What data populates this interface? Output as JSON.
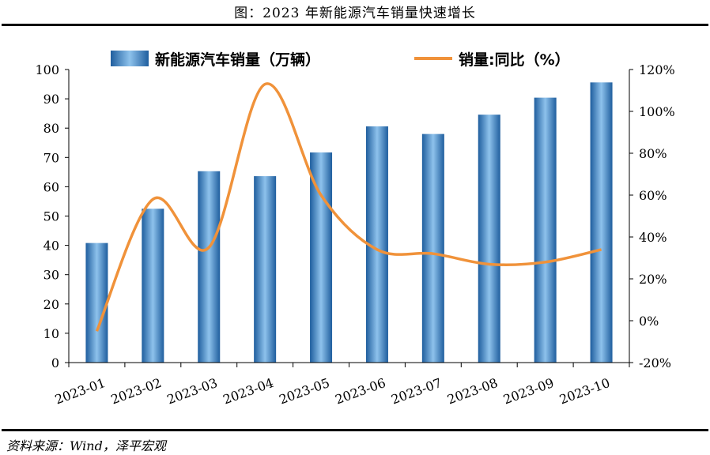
{
  "figure_title": "图：2023 年新能源汽车销量快速增长",
  "source": "资料来源：Wind，泽平宏观",
  "colors": {
    "bar_dark": "#1f5e9e",
    "bar_light": "#8ec2ec",
    "line": "#f0923a"
  },
  "chart_data": {
    "type": "bar",
    "title": "",
    "categories": [
      "2023-01",
      "2023-02",
      "2023-03",
      "2023-04",
      "2023-05",
      "2023-06",
      "2023-07",
      "2023-08",
      "2023-09",
      "2023-10"
    ],
    "series": [
      {
        "name": "新能源汽车销量（万辆）",
        "type": "bar",
        "axis": "left",
        "values": [
          40.8,
          52.5,
          65.3,
          63.6,
          71.7,
          80.6,
          78.0,
          84.6,
          90.4,
          95.6
        ]
      },
      {
        "name": "销量:同比（%）",
        "type": "line",
        "axis": "right",
        "values": [
          -5,
          58,
          35,
          113,
          60,
          34,
          32,
          27,
          28,
          34
        ]
      }
    ],
    "y_left": {
      "min": 0,
      "max": 100,
      "step": 10,
      "ticks": [
        "0",
        "10",
        "20",
        "30",
        "40",
        "50",
        "60",
        "70",
        "80",
        "90",
        "100"
      ]
    },
    "y_right": {
      "min": -20,
      "max": 120,
      "step": 20,
      "ticks": [
        "-20%",
        "0%",
        "20%",
        "40%",
        "60%",
        "80%",
        "100%",
        "120%"
      ]
    },
    "legend_position": "top",
    "grid": false
  }
}
